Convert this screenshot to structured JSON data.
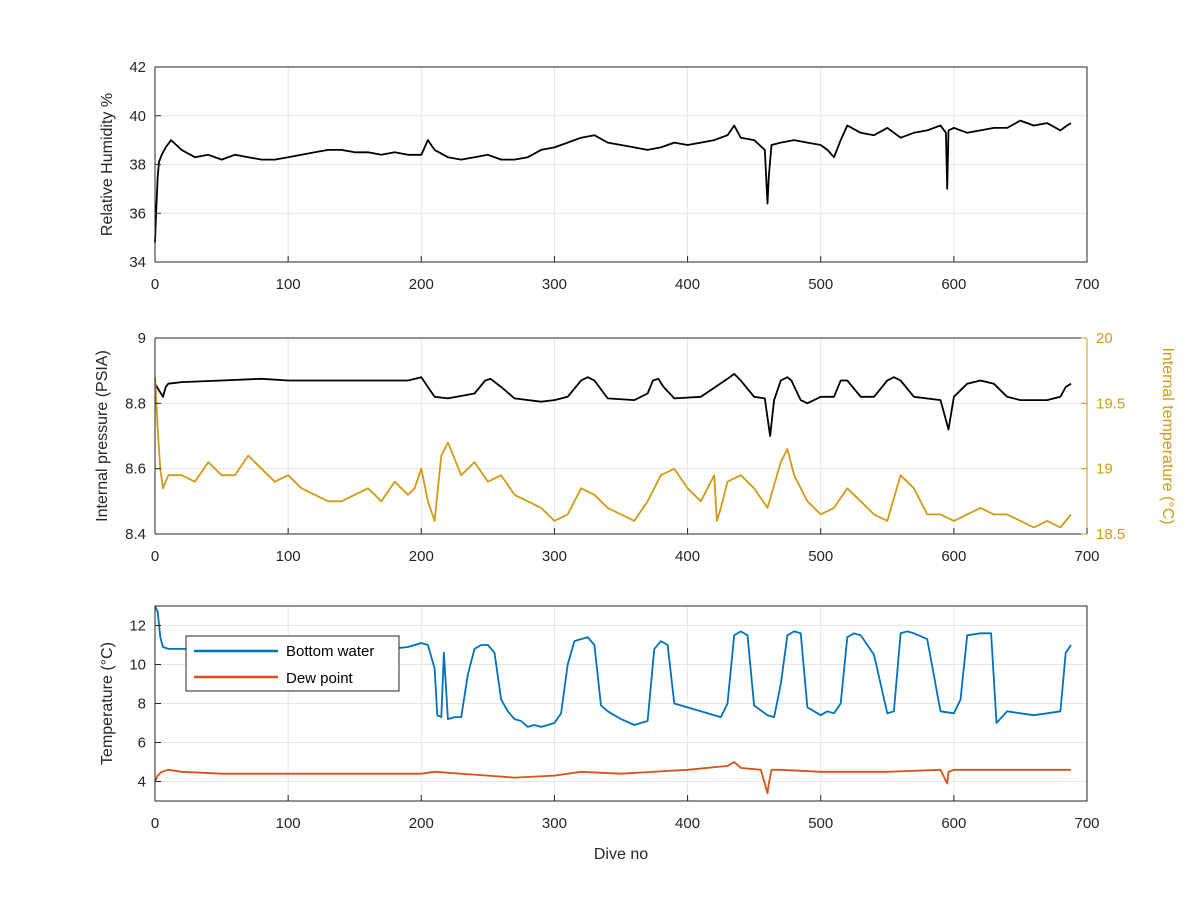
{
  "chart_data": [
    {
      "type": "line",
      "id": "humidity",
      "title": "",
      "xlabel": "",
      "ylabel": "Relative Humidity %",
      "xlim": [
        0,
        700
      ],
      "ylim": [
        34,
        42
      ],
      "xticks": [
        0,
        100,
        200,
        300,
        400,
        500,
        600,
        700
      ],
      "yticks": [
        34,
        36,
        38,
        40,
        42
      ],
      "grid": true,
      "series": [
        {
          "color": "#000000",
          "x": [
            0,
            1,
            2,
            3,
            5,
            8,
            12,
            20,
            30,
            40,
            50,
            60,
            70,
            80,
            90,
            100,
            110,
            120,
            130,
            140,
            150,
            160,
            170,
            180,
            190,
            200,
            205,
            210,
            220,
            230,
            240,
            250,
            260,
            270,
            280,
            290,
            300,
            310,
            320,
            330,
            340,
            350,
            360,
            370,
            380,
            390,
            400,
            410,
            420,
            430,
            435,
            440,
            450,
            458,
            460,
            461,
            463,
            470,
            480,
            490,
            500,
            505,
            510,
            515,
            520,
            530,
            540,
            550,
            560,
            570,
            580,
            590,
            594,
            595,
            596,
            600,
            610,
            620,
            630,
            640,
            650,
            660,
            670,
            680,
            685,
            688
          ],
          "y": [
            34.8,
            36.2,
            37.5,
            38.1,
            38.4,
            38.7,
            39.0,
            38.6,
            38.3,
            38.4,
            38.2,
            38.4,
            38.3,
            38.2,
            38.2,
            38.3,
            38.4,
            38.5,
            38.6,
            38.6,
            38.5,
            38.5,
            38.4,
            38.5,
            38.4,
            38.4,
            39.0,
            38.6,
            38.3,
            38.2,
            38.3,
            38.4,
            38.2,
            38.2,
            38.3,
            38.6,
            38.7,
            38.9,
            39.1,
            39.2,
            38.9,
            38.8,
            38.7,
            38.6,
            38.7,
            38.9,
            38.8,
            38.9,
            39.0,
            39.2,
            39.6,
            39.1,
            39.0,
            38.6,
            36.4,
            37.5,
            38.8,
            38.9,
            39.0,
            38.9,
            38.8,
            38.6,
            38.3,
            39.0,
            39.6,
            39.3,
            39.2,
            39.5,
            39.1,
            39.3,
            39.4,
            39.6,
            39.3,
            37.0,
            39.4,
            39.5,
            39.3,
            39.4,
            39.5,
            39.5,
            39.8,
            39.6,
            39.7,
            39.4,
            39.6,
            39.7
          ]
        }
      ]
    },
    {
      "type": "line",
      "id": "pressure",
      "title": "",
      "xlabel": "",
      "ylabel": "Internal pressure (PSIA)",
      "ylabel_right": "Internal temperature (°C)",
      "xlim": [
        0,
        700
      ],
      "ylim": [
        8.4,
        9
      ],
      "ylim_right": [
        18.5,
        20
      ],
      "xticks": [
        0,
        100,
        200,
        300,
        400,
        500,
        600,
        700
      ],
      "yticks": [
        8.4,
        8.6,
        8.8,
        9
      ],
      "yticks_right": [
        18.5,
        19,
        19.5,
        20
      ],
      "ytick_labels": [
        "8.4",
        "8.6",
        "8.8",
        "9"
      ],
      "ytick_labels_right": [
        "18.5",
        "19",
        "19.5",
        "20"
      ],
      "grid": true,
      "right_axis_color": "#D29A15",
      "series": [
        {
          "axis": "left",
          "color": "#000000",
          "x": [
            0,
            3,
            6,
            8,
            10,
            20,
            50,
            80,
            100,
            150,
            190,
            200,
            205,
            210,
            220,
            240,
            248,
            252,
            260,
            270,
            290,
            300,
            310,
            320,
            325,
            330,
            340,
            360,
            370,
            374,
            378,
            382,
            390,
            410,
            430,
            435,
            440,
            450,
            458,
            462,
            465,
            470,
            475,
            478,
            485,
            490,
            500,
            510,
            515,
            520,
            530,
            540,
            550,
            555,
            560,
            570,
            590,
            596,
            600,
            610,
            620,
            630,
            640,
            650,
            660,
            670,
            680,
            684,
            688
          ],
          "y": [
            8.86,
            8.84,
            8.82,
            8.85,
            8.86,
            8.865,
            8.87,
            8.875,
            8.87,
            8.87,
            8.87,
            8.88,
            8.85,
            8.82,
            8.815,
            8.83,
            8.87,
            8.875,
            8.85,
            8.815,
            8.805,
            8.81,
            8.82,
            8.87,
            8.88,
            8.87,
            8.815,
            8.81,
            8.83,
            8.87,
            8.875,
            8.85,
            8.815,
            8.82,
            8.875,
            8.89,
            8.87,
            8.82,
            8.815,
            8.7,
            8.81,
            8.87,
            8.88,
            8.87,
            8.81,
            8.8,
            8.82,
            8.82,
            8.87,
            8.87,
            8.82,
            8.82,
            8.87,
            8.88,
            8.87,
            8.82,
            8.81,
            8.72,
            8.82,
            8.86,
            8.87,
            8.86,
            8.82,
            8.81,
            8.81,
            8.81,
            8.82,
            8.85,
            8.86
          ]
        },
        {
          "axis": "right",
          "color": "#D29A15",
          "x": [
            0,
            2,
            4,
            6,
            8,
            10,
            20,
            30,
            40,
            50,
            60,
            70,
            80,
            90,
            100,
            110,
            120,
            130,
            140,
            150,
            160,
            170,
            180,
            190,
            195,
            200,
            205,
            210,
            215,
            220,
            230,
            240,
            250,
            260,
            270,
            280,
            290,
            300,
            310,
            320,
            330,
            340,
            350,
            360,
            370,
            380,
            390,
            400,
            410,
            420,
            422,
            425,
            430,
            440,
            450,
            460,
            470,
            475,
            480,
            490,
            500,
            510,
            520,
            530,
            540,
            550,
            560,
            570,
            580,
            590,
            600,
            610,
            620,
            630,
            640,
            650,
            660,
            670,
            680,
            688
          ],
          "y": [
            19.7,
            19.3,
            19.0,
            18.85,
            18.9,
            18.95,
            18.95,
            18.9,
            19.05,
            18.95,
            18.95,
            19.1,
            19.0,
            18.9,
            18.95,
            18.85,
            18.8,
            18.75,
            18.75,
            18.8,
            18.85,
            18.75,
            18.9,
            18.8,
            18.85,
            19.0,
            18.75,
            18.6,
            19.1,
            19.2,
            18.95,
            19.05,
            18.9,
            18.95,
            18.8,
            18.75,
            18.7,
            18.6,
            18.65,
            18.85,
            18.8,
            18.7,
            18.65,
            18.6,
            18.75,
            18.95,
            19.0,
            18.85,
            18.75,
            18.95,
            18.6,
            18.7,
            18.9,
            18.95,
            18.85,
            18.7,
            19.05,
            19.15,
            18.95,
            18.75,
            18.65,
            18.7,
            18.85,
            18.75,
            18.65,
            18.6,
            18.95,
            18.85,
            18.65,
            18.65,
            18.6,
            18.65,
            18.7,
            18.65,
            18.65,
            18.6,
            18.55,
            18.6,
            18.55,
            18.65
          ]
        }
      ]
    },
    {
      "type": "line",
      "id": "temperature",
      "title": "",
      "xlabel": "Dive no",
      "ylabel": "Temperature (°C)",
      "xlim": [
        0,
        700
      ],
      "ylim": [
        3,
        13
      ],
      "xticks": [
        0,
        100,
        200,
        300,
        400,
        500,
        600,
        700
      ],
      "yticks": [
        4,
        6,
        8,
        10,
        12
      ],
      "grid": true,
      "legend_placement": "top-left",
      "series": [
        {
          "name": "Bottom water",
          "color": "#0072BD",
          "x": [
            0,
            2,
            4,
            6,
            10,
            20,
            30,
            60,
            100,
            150,
            190,
            200,
            205,
            210,
            212,
            215,
            217,
            220,
            225,
            230,
            235,
            240,
            245,
            250,
            255,
            260,
            265,
            270,
            275,
            280,
            285,
            290,
            295,
            300,
            305,
            310,
            315,
            320,
            325,
            330,
            335,
            340,
            350,
            360,
            365,
            370,
            375,
            380,
            385,
            390,
            400,
            410,
            420,
            425,
            430,
            435,
            440,
            445,
            450,
            460,
            465,
            470,
            475,
            480,
            485,
            490,
            500,
            505,
            510,
            515,
            520,
            525,
            530,
            540,
            550,
            555,
            560,
            565,
            570,
            580,
            590,
            600,
            605,
            610,
            620,
            628,
            632,
            640,
            650,
            660,
            670,
            680,
            684,
            688
          ],
          "y": [
            13,
            12.7,
            11.4,
            10.9,
            10.8,
            10.8,
            10.8,
            10.7,
            10.6,
            10.6,
            10.9,
            11.1,
            11.0,
            9.8,
            7.4,
            7.3,
            10.6,
            7.2,
            7.3,
            7.3,
            9.5,
            10.8,
            11.0,
            11.0,
            10.6,
            8.2,
            7.6,
            7.2,
            7.1,
            6.8,
            6.9,
            6.8,
            6.9,
            7.0,
            7.5,
            10.0,
            11.2,
            11.3,
            11.4,
            11.0,
            7.9,
            7.6,
            7.2,
            6.9,
            7.0,
            7.1,
            10.8,
            11.2,
            11.0,
            8.0,
            7.8,
            7.6,
            7.4,
            7.3,
            8.0,
            11.5,
            11.7,
            11.5,
            7.9,
            7.4,
            7.3,
            9.0,
            11.5,
            11.7,
            11.6,
            7.8,
            7.4,
            7.6,
            7.5,
            8.0,
            11.4,
            11.6,
            11.5,
            10.5,
            7.5,
            7.6,
            11.6,
            11.7,
            11.6,
            11.3,
            7.6,
            7.5,
            8.2,
            11.5,
            11.6,
            11.6,
            7.0,
            7.6,
            7.5,
            7.4,
            7.5,
            7.6,
            10.6,
            11.0
          ]
        },
        {
          "name": "Dew point",
          "color": "#D95319",
          "x": [
            0,
            2,
            5,
            10,
            20,
            50,
            100,
            150,
            200,
            210,
            250,
            270,
            300,
            320,
            350,
            400,
            430,
            435,
            440,
            455,
            460,
            461,
            463,
            470,
            500,
            550,
            590,
            595,
            596,
            600,
            650,
            688
          ],
          "y": [
            4.0,
            4.3,
            4.5,
            4.6,
            4.5,
            4.4,
            4.4,
            4.4,
            4.4,
            4.5,
            4.3,
            4.2,
            4.3,
            4.5,
            4.4,
            4.6,
            4.8,
            5.0,
            4.7,
            4.6,
            3.4,
            3.9,
            4.6,
            4.6,
            4.5,
            4.5,
            4.6,
            3.9,
            4.5,
            4.6,
            4.6,
            4.6
          ]
        }
      ]
    }
  ]
}
